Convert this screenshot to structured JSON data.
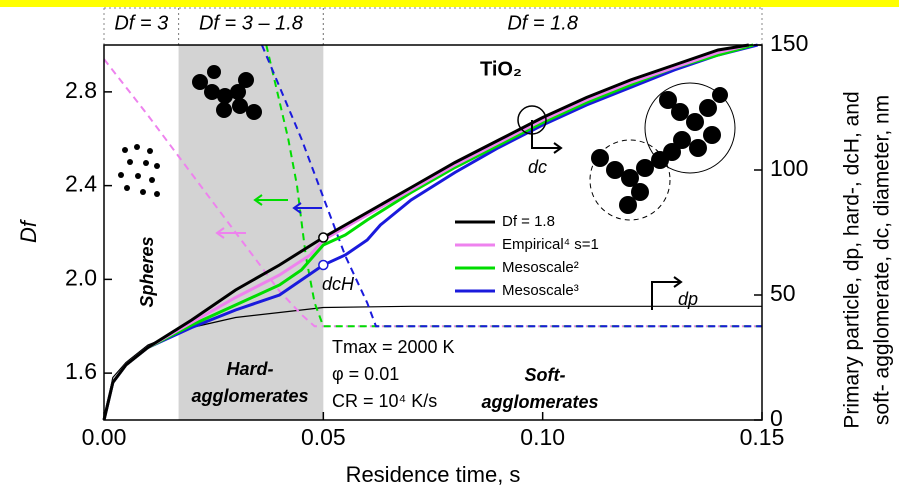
{
  "chart_data": {
    "type": "line",
    "x_label": "Residence time, s",
    "y_label": "Df",
    "y2_label": [
      "Primary particle, dp, hard-, dcH, and",
      "soft- agglomerate, dc, diameter, nm"
    ],
    "xlim": [
      0,
      0.15
    ],
    "xticks": [
      {
        "value": 0,
        "label": "0.00"
      },
      {
        "value": 0.05,
        "label": "0.05"
      },
      {
        "value": 0.1,
        "label": "0.10"
      },
      {
        "value": 0.15,
        "label": "0.15"
      }
    ],
    "ylim": [
      1.4,
      3.0
    ],
    "yticks": [
      {
        "value": 1.6,
        "label": "1.6"
      },
      {
        "value": 2.0,
        "label": "2.0"
      },
      {
        "value": 2.4,
        "label": "2.4"
      },
      {
        "value": 2.8,
        "label": "2.8"
      }
    ],
    "y2lim": [
      0,
      150
    ],
    "y2ticks": [
      0,
      50,
      100,
      150
    ],
    "shaded_region": [
      0.017,
      0.05
    ],
    "regions": [
      {
        "label": "Df = 3",
        "x": [
          0,
          0.017
        ]
      },
      {
        "label": "Df = 3 – 1.8",
        "x": [
          0.017,
          0.05
        ]
      },
      {
        "label": "Df = 1.8",
        "x": [
          0.05,
          0.15
        ]
      }
    ],
    "series": [
      {
        "name": "Df = 1.8",
        "color": "#000000",
        "axis": "y2",
        "x": [
          0,
          0.002,
          0.005,
          0.01,
          0.02,
          0.03,
          0.04,
          0.05,
          0.06,
          0.07,
          0.08,
          0.09,
          0.1,
          0.11,
          0.12,
          0.13,
          0.14,
          0.147
        ],
        "values": [
          0,
          15,
          22,
          29,
          40,
          52,
          62,
          73,
          83,
          93,
          103,
          112,
          121,
          129,
          136,
          142,
          148,
          150
        ]
      },
      {
        "name": "Empirical⁴ s=1",
        "color": "#ee82ee",
        "axis": "y2",
        "x": [
          0,
          0.002,
          0.005,
          0.01,
          0.02,
          0.03,
          0.04,
          0.047,
          0.05,
          0.06,
          0.07,
          0.08,
          0.09,
          0.1,
          0.11,
          0.12,
          0.13,
          0.14,
          0.147
        ],
        "values": [
          0,
          15,
          22,
          29,
          39,
          49,
          58,
          66,
          72,
          82,
          92,
          102,
          111,
          120,
          128,
          135,
          141,
          147,
          150
        ]
      },
      {
        "name": "Mesoscale²",
        "color": "#00dd00",
        "axis": "y2",
        "x": [
          0,
          0.002,
          0.005,
          0.01,
          0.02,
          0.03,
          0.04,
          0.045,
          0.05,
          0.055,
          0.06,
          0.07,
          0.08,
          0.09,
          0.1,
          0.11,
          0.12,
          0.13,
          0.14,
          0.148
        ],
        "values": [
          0,
          15,
          22,
          29,
          38,
          46,
          54,
          60,
          70,
          74,
          80,
          91,
          101,
          110,
          119,
          127,
          134,
          141,
          146,
          150
        ]
      },
      {
        "name": "Mesoscale³",
        "color": "#1a1adc",
        "axis": "y2",
        "x": [
          0,
          0.002,
          0.005,
          0.01,
          0.02,
          0.03,
          0.04,
          0.05,
          0.055,
          0.06,
          0.063,
          0.07,
          0.08,
          0.09,
          0.1,
          0.11,
          0.12,
          0.13,
          0.14,
          0.149
        ],
        "values": [
          0,
          15,
          22,
          29,
          37,
          44,
          50,
          62,
          66,
          72,
          78,
          88,
          99,
          109,
          118,
          126,
          133,
          140,
          146,
          150
        ]
      }
    ],
    "other_series": [
      {
        "color": "#000000",
        "axis": "y2",
        "dash": false,
        "x": [
          0,
          0.002,
          0.005,
          0.01,
          0.02,
          0.03,
          0.04,
          0.05,
          0.07,
          0.15
        ],
        "values": [
          0,
          17,
          23,
          30,
          37,
          41,
          43,
          45,
          45.5,
          45.5
        ]
      },
      {
        "color": "#ee82ee",
        "axis": "y",
        "dash": true,
        "x": [
          0,
          0.01,
          0.02,
          0.03,
          0.04,
          0.045,
          0.048,
          0.15
        ],
        "values": [
          2.94,
          2.7,
          2.45,
          2.2,
          1.95,
          1.85,
          1.8,
          1.8
        ]
      },
      {
        "color": "#00dd00",
        "axis": "y",
        "dash": true,
        "x": [
          0.037,
          0.042,
          0.044,
          0.046,
          0.048,
          0.05,
          0.15
        ],
        "values": [
          3.0,
          2.6,
          2.4,
          2.1,
          1.9,
          1.8,
          1.8
        ]
      },
      {
        "color": "#1a1adc",
        "axis": "y",
        "dash": true,
        "x": [
          0.036,
          0.045,
          0.05,
          0.055,
          0.06,
          0.062,
          0.15
        ],
        "values": [
          3.0,
          2.6,
          2.35,
          2.1,
          1.9,
          1.8,
          1.8
        ]
      }
    ],
    "annotations": {
      "material": "TiO₂",
      "spheres": "Spheres",
      "hard": [
        "Hard-",
        "agglomerates"
      ],
      "soft": [
        "Soft-",
        "agglomerates"
      ],
      "conditions": [
        "Tmax = 2000 K",
        "φ = 0.01",
        "CR = 10⁴ K/s"
      ],
      "dc": "dc",
      "dcH": "dcH",
      "dp": "dp"
    }
  }
}
